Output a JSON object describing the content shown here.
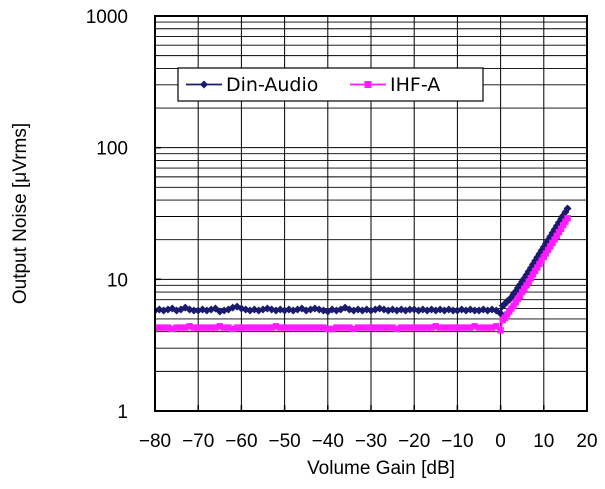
{
  "chart_data": {
    "type": "line",
    "xlabel": "Volume Gain [dB]",
    "ylabel": "Output Noise [μVrms]",
    "xlim": [
      -80,
      20
    ],
    "ylim": [
      1,
      1000
    ],
    "yscale": "log",
    "grid": true,
    "legend": "top-left",
    "x_ticks": [
      -80,
      -70,
      -60,
      -50,
      -40,
      -30,
      -20,
      -10,
      0,
      10,
      20
    ],
    "x_tick_labels": [
      "−80",
      "−70",
      "−60",
      "−50",
      "−40",
      "−30",
      "−20",
      "−10",
      "0",
      "10",
      "20"
    ],
    "y_ticks": [
      1,
      10,
      100,
      1000
    ],
    "y_tick_labels": [
      "1",
      "10",
      "100",
      "1000"
    ],
    "x": [
      -80,
      -79,
      -78,
      -77,
      -76,
      -75,
      -74,
      -73,
      -72,
      -71,
      -70,
      -69,
      -68,
      -67,
      -66,
      -65,
      -64,
      -63,
      -62,
      -61,
      -60,
      -59,
      -58,
      -57,
      -56,
      -55,
      -54,
      -53,
      -52,
      -51,
      -50,
      -49,
      -48,
      -47,
      -46,
      -45,
      -44,
      -43,
      -42,
      -41,
      -40,
      -39,
      -38,
      -37,
      -36,
      -35,
      -34,
      -33,
      -32,
      -31,
      -30,
      -29,
      -28,
      -27,
      -26,
      -25,
      -24,
      -23,
      -22,
      -21,
      -20,
      -19,
      -18,
      -17,
      -16,
      -15,
      -14,
      -13,
      -12,
      -11,
      -10,
      -9,
      -8,
      -7,
      -6,
      -5,
      -4,
      -3,
      -2,
      -1,
      0,
      0.5,
      1,
      1.5,
      2,
      2.5,
      3,
      3.5,
      4,
      4.5,
      5,
      5.5,
      6,
      6.5,
      7,
      7.5,
      8,
      8.5,
      9,
      9.5,
      10,
      10.5,
      11,
      11.5,
      12,
      12.5,
      13,
      13.5,
      14,
      14.5,
      15,
      15.5
    ],
    "series": [
      {
        "name": "Din-Audio",
        "color": "#1a1a6e",
        "marker": "diamond",
        "values": [
          5.8,
          5.9,
          5.8,
          5.9,
          6.0,
          5.8,
          5.9,
          6.1,
          5.9,
          5.8,
          5.8,
          5.9,
          5.8,
          5.9,
          6.0,
          5.7,
          5.8,
          5.9,
          6.1,
          6.2,
          6.0,
          5.9,
          5.8,
          5.9,
          5.8,
          5.9,
          6.0,
          5.9,
          5.8,
          5.9,
          5.8,
          5.9,
          5.8,
          5.9,
          6.0,
          5.8,
          5.9,
          6.0,
          5.9,
          5.8,
          5.7,
          5.9,
          5.8,
          5.9,
          6.1,
          5.9,
          5.8,
          5.9,
          5.8,
          5.9,
          5.8,
          5.9,
          6.0,
          5.9,
          5.8,
          5.9,
          5.8,
          5.9,
          5.8,
          5.9,
          5.9,
          5.8,
          5.9,
          5.8,
          5.9,
          5.8,
          5.9,
          5.8,
          5.9,
          5.8,
          5.8,
          5.9,
          5.8,
          5.9,
          5.8,
          5.8,
          5.9,
          5.8,
          5.9,
          5.8,
          5.5,
          6.3,
          6.5,
          6.8,
          7.0,
          7.3,
          7.7,
          8.1,
          8.6,
          9.1,
          9.6,
          10.2,
          10.8,
          11.5,
          12.2,
          13.0,
          13.8,
          14.7,
          15.6,
          16.6,
          17.6,
          18.7,
          19.9,
          21.1,
          22.5,
          23.9,
          25.4,
          27.0,
          28.7,
          30.5,
          32.4,
          34.5
        ]
      },
      {
        "name": "IHF-A",
        "color": "#ff1aff",
        "marker": "square",
        "values": [
          4.3,
          4.3,
          4.3,
          4.3,
          4.2,
          4.3,
          4.3,
          4.3,
          4.4,
          4.3,
          4.3,
          4.3,
          4.3,
          4.3,
          4.3,
          4.4,
          4.3,
          4.3,
          4.2,
          4.3,
          4.3,
          4.3,
          4.3,
          4.3,
          4.3,
          4.3,
          4.3,
          4.3,
          4.4,
          4.3,
          4.3,
          4.3,
          4.3,
          4.3,
          4.3,
          4.3,
          4.3,
          4.3,
          4.3,
          4.3,
          4.2,
          4.2,
          4.3,
          4.3,
          4.3,
          4.3,
          4.2,
          4.3,
          4.3,
          4.3,
          4.3,
          4.3,
          4.3,
          4.3,
          4.3,
          4.3,
          4.2,
          4.3,
          4.3,
          4.3,
          4.3,
          4.3,
          4.3,
          4.3,
          4.3,
          4.4,
          4.3,
          4.3,
          4.3,
          4.3,
          4.3,
          4.3,
          4.3,
          4.3,
          4.4,
          4.3,
          4.3,
          4.3,
          4.3,
          4.4,
          4.1,
          4.9,
          5.1,
          5.4,
          5.7,
          6.0,
          6.3,
          6.7,
          7.1,
          7.5,
          8.0,
          8.5,
          9.0,
          9.6,
          10.2,
          10.9,
          11.6,
          12.3,
          13.1,
          13.9,
          14.8,
          15.7,
          16.7,
          17.8,
          18.9,
          20.1,
          21.4,
          22.8,
          24.2,
          25.8,
          27.4,
          29.1
        ]
      }
    ]
  }
}
